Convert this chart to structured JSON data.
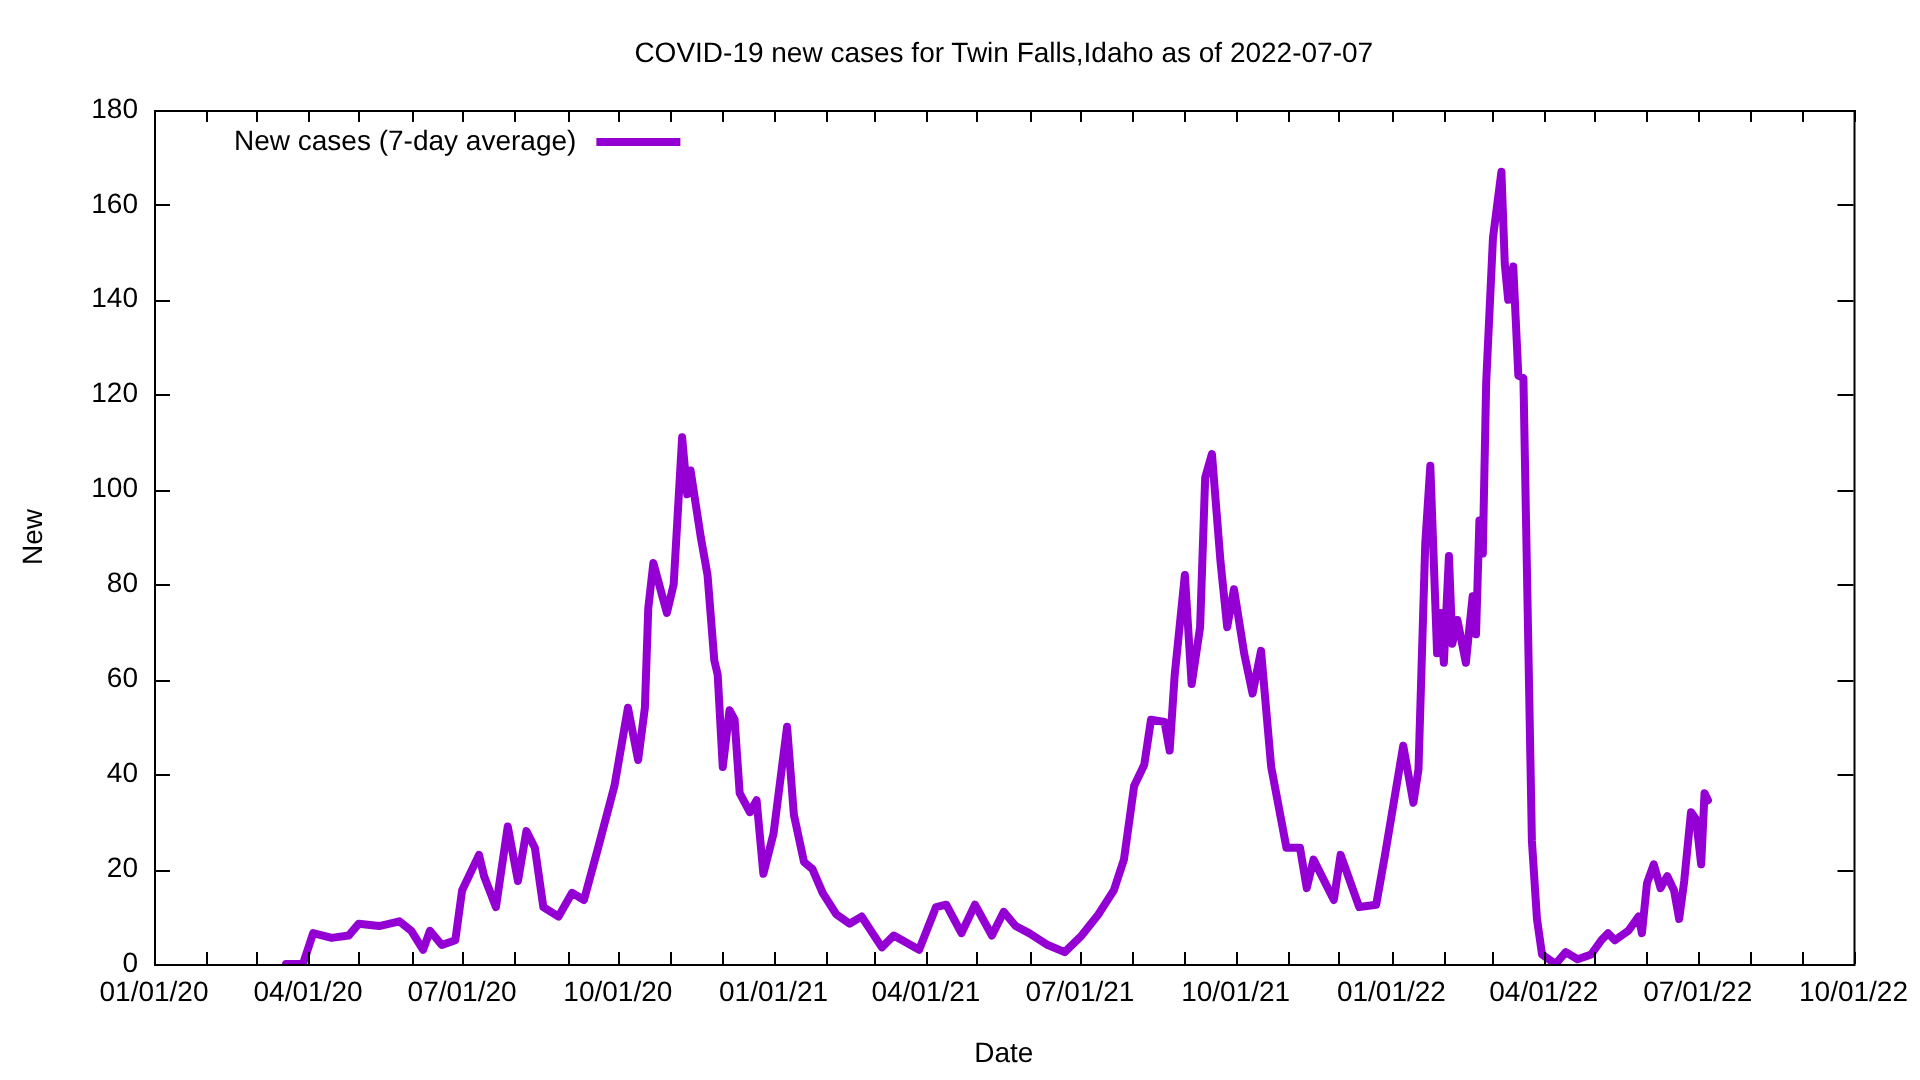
{
  "chart_data": {
    "type": "line",
    "title": "COVID-19 new cases for Twin Falls,Idaho as of 2022-07-07",
    "xlabel": "Date",
    "ylabel": "New",
    "legend": "top left",
    "grid": false,
    "xlim": [
      "2020-01-01",
      "2022-10-01"
    ],
    "ylim": [
      0,
      180
    ],
    "yticks": [
      0,
      20,
      40,
      60,
      80,
      100,
      120,
      140,
      160,
      180
    ],
    "xticks": [
      {
        "value": "2020-01-01",
        "label": "01/01/20"
      },
      {
        "value": "2020-02-01",
        "label": null
      },
      {
        "value": "2020-03-01",
        "label": null
      },
      {
        "value": "2020-04-01",
        "label": "04/01/20"
      },
      {
        "value": "2020-05-01",
        "label": null
      },
      {
        "value": "2020-06-01",
        "label": null
      },
      {
        "value": "2020-07-01",
        "label": "07/01/20"
      },
      {
        "value": "2020-08-01",
        "label": null
      },
      {
        "value": "2020-09-01",
        "label": null
      },
      {
        "value": "2020-10-01",
        "label": "10/01/20"
      },
      {
        "value": "2020-11-01",
        "label": null
      },
      {
        "value": "2020-12-01",
        "label": null
      },
      {
        "value": "2021-01-01",
        "label": "01/01/21"
      },
      {
        "value": "2021-02-01",
        "label": null
      },
      {
        "value": "2021-03-01",
        "label": null
      },
      {
        "value": "2021-04-01",
        "label": "04/01/21"
      },
      {
        "value": "2021-05-01",
        "label": null
      },
      {
        "value": "2021-06-01",
        "label": null
      },
      {
        "value": "2021-07-01",
        "label": "07/01/21"
      },
      {
        "value": "2021-08-01",
        "label": null
      },
      {
        "value": "2021-09-01",
        "label": null
      },
      {
        "value": "2021-10-01",
        "label": "10/01/21"
      },
      {
        "value": "2021-11-01",
        "label": null
      },
      {
        "value": "2021-12-01",
        "label": null
      },
      {
        "value": "2022-01-01",
        "label": "01/01/22"
      },
      {
        "value": "2022-02-01",
        "label": null
      },
      {
        "value": "2022-03-01",
        "label": null
      },
      {
        "value": "2022-04-01",
        "label": "04/01/22"
      },
      {
        "value": "2022-05-01",
        "label": null
      },
      {
        "value": "2022-06-01",
        "label": null
      },
      {
        "value": "2022-07-01",
        "label": "07/01/22"
      },
      {
        "value": "2022-08-01",
        "label": null
      },
      {
        "value": "2022-09-01",
        "label": null
      },
      {
        "value": "2022-10-01",
        "label": "10/01/22"
      }
    ],
    "x": [
      "2020-03-19",
      "2020-03-29",
      "2020-04-04",
      "2020-04-15",
      "2020-04-25",
      "2020-05-01",
      "2020-05-13",
      "2020-05-25",
      "2020-06-01",
      "2020-06-08",
      "2020-06-12",
      "2020-06-19",
      "2020-06-27",
      "2020-07-01",
      "2020-07-11",
      "2020-07-14",
      "2020-07-21",
      "2020-07-28",
      "2020-08-03",
      "2020-08-08",
      "2020-08-13",
      "2020-08-18",
      "2020-08-27",
      "2020-09-04",
      "2020-09-11",
      "2020-09-19",
      "2020-09-29",
      "2020-10-07",
      "2020-10-13",
      "2020-10-17",
      "2020-10-19",
      "2020-10-22",
      "2020-10-30",
      "2020-11-03",
      "2020-11-08",
      "2020-11-11",
      "2020-11-13",
      "2020-11-19",
      "2020-11-23",
      "2020-11-27",
      "2020-11-29",
      "2020-12-02",
      "2020-12-06",
      "2020-12-09",
      "2020-12-12",
      "2020-12-18",
      "2020-12-22",
      "2020-12-26",
      "2021-01-01",
      "2021-01-09",
      "2021-01-13",
      "2021-01-19",
      "2021-01-24",
      "2021-01-30",
      "2021-02-07",
      "2021-02-15",
      "2021-02-22",
      "2021-03-06",
      "2021-03-13",
      "2021-03-28",
      "2021-04-07",
      "2021-04-13",
      "2021-04-22",
      "2021-04-30",
      "2021-05-10",
      "2021-05-17",
      "2021-05-24",
      "2021-06-01",
      "2021-06-12",
      "2021-06-22",
      "2021-07-02",
      "2021-07-12",
      "2021-07-21",
      "2021-07-27",
      "2021-08-02",
      "2021-08-08",
      "2021-08-12",
      "2021-08-20",
      "2021-08-23",
      "2021-08-26",
      "2021-09-01",
      "2021-09-05",
      "2021-09-10",
      "2021-09-13",
      "2021-09-17",
      "2021-09-22",
      "2021-09-26",
      "2021-09-30",
      "2021-10-06",
      "2021-10-11",
      "2021-10-16",
      "2021-10-22",
      "2021-10-31",
      "2021-11-08",
      "2021-11-12",
      "2021-11-16",
      "2021-11-28",
      "2021-12-02",
      "2021-12-13",
      "2021-12-23",
      "2021-12-28",
      "2022-01-08",
      "2022-01-14",
      "2022-01-17",
      "2022-01-21",
      "2022-01-24",
      "2022-01-28",
      "2022-01-30",
      "2022-02-01",
      "2022-02-04",
      "2022-02-06",
      "2022-02-09",
      "2022-02-14",
      "2022-02-18",
      "2022-02-20",
      "2022-02-22",
      "2022-02-24",
      "2022-02-26",
      "2022-03-02",
      "2022-03-07",
      "2022-03-09",
      "2022-03-11",
      "2022-03-14",
      "2022-03-17",
      "2022-03-20",
      "2022-03-25",
      "2022-03-28",
      "2022-03-31",
      "2022-04-08",
      "2022-04-14",
      "2022-04-21",
      "2022-04-29",
      "2022-05-05",
      "2022-05-09",
      "2022-05-13",
      "2022-05-21",
      "2022-05-27",
      "2022-05-29",
      "2022-06-01",
      "2022-06-05",
      "2022-06-09",
      "2022-06-13",
      "2022-06-17",
      "2022-06-20",
      "2022-06-23",
      "2022-06-27",
      "2022-06-30",
      "2022-07-03",
      "2022-07-05",
      "2022-07-07"
    ],
    "series": [
      {
        "name": "New cases (7-day average)",
        "color": "#9400d3",
        "values": [
          0,
          0,
          6.5,
          5.5,
          6,
          8.5,
          8,
          9,
          7,
          3,
          7,
          4,
          5,
          15.5,
          23,
          18.5,
          12,
          29,
          17.5,
          28,
          24.5,
          12,
          10,
          15,
          13.5,
          24,
          37.5,
          54,
          43,
          54,
          75,
          84.5,
          74,
          80,
          111,
          99,
          104,
          90,
          82,
          64,
          61,
          41.5,
          53.5,
          51.5,
          36,
          32,
          34.5,
          19,
          27.5,
          50,
          31.5,
          21.5,
          20,
          15,
          10.5,
          8.5,
          10,
          3.5,
          6,
          3,
          12,
          12.5,
          6.5,
          12.5,
          6,
          11,
          8,
          6.5,
          4,
          2.5,
          6,
          10.5,
          15.5,
          22,
          37.5,
          42,
          51.5,
          51,
          45,
          61,
          82,
          59,
          71,
          102.5,
          107.5,
          85,
          71,
          79,
          65.5,
          57,
          66,
          41.5,
          24.5,
          24.5,
          16,
          22,
          13.5,
          23,
          12,
          12.5,
          22.5,
          46,
          34,
          41,
          88.5,
          105,
          65.5,
          74,
          63.5,
          86,
          67.5,
          72.5,
          63.5,
          77.5,
          69.5,
          93.5,
          86.5,
          122.5,
          153,
          167,
          147.5,
          140,
          147,
          124,
          123.5,
          26,
          9.5,
          2,
          0,
          2.5,
          1,
          2,
          5,
          6.5,
          5,
          7,
          10,
          6.5,
          17,
          21,
          16,
          18.5,
          15.5,
          9.5,
          17.5,
          32,
          30.5,
          21,
          36,
          34.5
        ]
      }
    ]
  }
}
